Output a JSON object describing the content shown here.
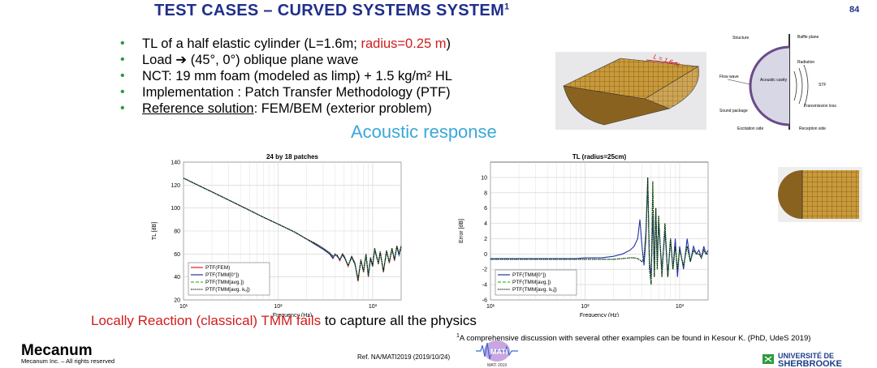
{
  "slide": {
    "title": "TEST CASES – CURVED SYSTEMS SYSTEM",
    "title_sup": "1",
    "page_number": "84",
    "bullets": [
      {
        "pre": "TL of a half elastic cylinder (L=1.6m; ",
        "red": "radius=0.25 m",
        "post": ")"
      },
      {
        "pre": "Load ➔ (45°, 0°) oblique plane wave",
        "red": "",
        "post": ""
      },
      {
        "pre": "NCT: 19 mm foam (modeled as limp) + 1.5 kg/m² HL",
        "red": "",
        "post": ""
      },
      {
        "pre": "Implementation : Patch Transfer Methodology (PTF)",
        "red": "",
        "post": ""
      }
    ],
    "bullet5": {
      "underlined": "Reference solution",
      "rest": ": FEM/BEM (exterior problem)"
    },
    "section_heading": "Acoustic response",
    "bottom_line": {
      "red": "Locally Reaction (classical) TMM fails",
      "rest": " to capture all the physics"
    },
    "footnote_sup": "1",
    "footnote": "A comprehensive discussion with several other examples can be found in Kesour K. (PhD, UdeS 2019)",
    "reference": "Ref. NA/MATI2019  (2019/10/24)",
    "logo_left": "Mecanum",
    "logo_left_sub": "Mecanum Inc. – All rights reserved",
    "logo_right_line1": "UNIVERSITÉ DE",
    "logo_right_line2": "SHERBROOKE",
    "logo_center": "MATI",
    "logo_center_sub": "MATI 2019",
    "model_label": "L = 1.6 m",
    "diagram_labels": [
      "Structure",
      "Baffle plane",
      "Radiation",
      "Flow wave",
      "Acoustic cavity",
      "STF",
      "Sound package",
      "Transmission loss",
      "Excitation side",
      "Reception side"
    ]
  },
  "colors": {
    "title": "#1f2f8a",
    "bullet": "#2e9a3c",
    "accent_red": "#d01c1c",
    "heading": "#3aa8d8"
  },
  "chart_data": [
    {
      "type": "line",
      "title": "24 by 18 patches",
      "xlabel": "Frequency (Hz)",
      "ylabel": "TL [dB]",
      "xscale": "log",
      "xlim": [
        10,
        2000
      ],
      "ylim": [
        20,
        140
      ],
      "xticks": [
        10,
        100,
        1000
      ],
      "xtick_labels": [
        "10¹",
        "10²",
        "10³"
      ],
      "yticks": [
        20,
        40,
        60,
        80,
        100,
        120,
        140
      ],
      "grid": true,
      "legend_position": "bottom-left",
      "series": [
        {
          "name": "PTF(FEM)",
          "color": "#e02020",
          "dash": "solid",
          "x": [
            10,
            15,
            20,
            30,
            50,
            70,
            100,
            150,
            200,
            250,
            300,
            350,
            380,
            400,
            420,
            450,
            480,
            500,
            550,
            600,
            650,
            700,
            750,
            800,
            850,
            900,
            950,
            1000,
            1050,
            1100,
            1150,
            1200,
            1300,
            1400,
            1500,
            1600,
            1700,
            1800,
            1900,
            2000
          ],
          "y": [
            126,
            119,
            114,
            107,
            98,
            92,
            86,
            79,
            73,
            69,
            65,
            61,
            57,
            59,
            59,
            54,
            60,
            58,
            49,
            58,
            52,
            36,
            55,
            44,
            60,
            40,
            57,
            50,
            65,
            58,
            51,
            62,
            44,
            63,
            52,
            65,
            54,
            67,
            60,
            67
          ]
        },
        {
          "name": "PTF(TMM[0°])",
          "color": "#2233aa",
          "dash": "solid",
          "x": [
            10,
            15,
            20,
            30,
            50,
            70,
            100,
            150,
            200,
            250,
            300,
            350,
            380,
            400,
            420,
            450,
            480,
            500,
            550,
            600,
            650,
            700,
            750,
            800,
            850,
            900,
            950,
            1000,
            1050,
            1100,
            1150,
            1200,
            1300,
            1400,
            1500,
            1600,
            1700,
            1800,
            1900,
            2000
          ],
          "y": [
            126,
            119,
            114,
            107,
            98,
            92,
            86,
            79,
            73,
            68,
            64,
            60,
            56,
            60,
            58,
            55,
            59,
            57,
            50,
            57,
            51,
            38,
            54,
            45,
            59,
            41,
            56,
            49,
            64,
            57,
            52,
            61,
            45,
            62,
            53,
            64,
            55,
            66,
            59,
            66
          ]
        },
        {
          "name": "PTF(TMM[avg.])",
          "color": "#44bb33",
          "dash": "dashed",
          "x": [
            10,
            15,
            20,
            30,
            50,
            70,
            100,
            150,
            200,
            250,
            300,
            350,
            380,
            400,
            420,
            450,
            480,
            500,
            550,
            600,
            650,
            700,
            750,
            800,
            850,
            900,
            950,
            1000,
            1050,
            1100,
            1150,
            1200,
            1300,
            1400,
            1500,
            1600,
            1700,
            1800,
            1900,
            2000
          ],
          "y": [
            126,
            119,
            114,
            107,
            98,
            92,
            86,
            79,
            73,
            69,
            65,
            61,
            58,
            59,
            59,
            55,
            60,
            58,
            50,
            58,
            52,
            37,
            55,
            45,
            60,
            41,
            57,
            50,
            65,
            58,
            52,
            62,
            45,
            63,
            53,
            65,
            55,
            67,
            60,
            67
          ]
        },
        {
          "name": "PTF(TMM[avg. kᵤ])",
          "color": "#000000",
          "dash": "dotted",
          "x": [
            10,
            15,
            20,
            30,
            50,
            70,
            100,
            150,
            200,
            250,
            300,
            350,
            380,
            400,
            420,
            450,
            480,
            500,
            550,
            600,
            650,
            700,
            750,
            800,
            850,
            900,
            950,
            1000,
            1050,
            1100,
            1150,
            1200,
            1300,
            1400,
            1500,
            1600,
            1700,
            1800,
            1900,
            2000
          ],
          "y": [
            126,
            119,
            114,
            107,
            98,
            92,
            86,
            79,
            73,
            69,
            65,
            61,
            58,
            59,
            59,
            55,
            60,
            58,
            50,
            58,
            52,
            37,
            55,
            45,
            60,
            41,
            57,
            50,
            65,
            58,
            52,
            62,
            45,
            63,
            53,
            65,
            55,
            67,
            60,
            67
          ]
        }
      ]
    },
    {
      "type": "line",
      "title": "TL (radius=25cm)",
      "xlabel": "Frequency (Hz)",
      "ylabel": "Error [dB]",
      "xscale": "log",
      "xlim": [
        10,
        2000
      ],
      "ylim": [
        -6,
        12
      ],
      "xticks": [
        10,
        100,
        1000
      ],
      "xtick_labels": [
        "10¹",
        "10²",
        "10³"
      ],
      "yticks": [
        -6,
        -4,
        -2,
        0,
        2,
        4,
        6,
        8,
        10
      ],
      "grid": true,
      "legend_position": "bottom-left",
      "series": [
        {
          "name": "PTF(TMM[0°])",
          "color": "#2233aa",
          "dash": "solid",
          "x": [
            10,
            20,
            50,
            80,
            100,
            150,
            200,
            250,
            300,
            330,
            360,
            380,
            400,
            420,
            440,
            460,
            480,
            500,
            520,
            540,
            560,
            580,
            600,
            650,
            700,
            750,
            800,
            850,
            900,
            950,
            1000,
            1100,
            1200,
            1300,
            1400,
            1500,
            1600,
            1700,
            1800,
            1900,
            2000
          ],
          "y": [
            -0.6,
            -0.6,
            -0.6,
            -0.6,
            -0.5,
            -0.5,
            -0.3,
            0,
            0.5,
            1,
            2,
            4.5,
            1,
            -1.5,
            2,
            9.5,
            -1,
            -3,
            5,
            -2,
            6,
            -1,
            4,
            -2,
            3,
            -3,
            2,
            -2,
            2,
            -3,
            1,
            -2,
            2,
            -1,
            1,
            0,
            0.5,
            -0.5,
            1,
            0,
            0.5
          ]
        },
        {
          "name": "PTF(TMM[avg.])",
          "color": "#44bb33",
          "dash": "dashed",
          "x": [
            10,
            20,
            50,
            80,
            100,
            150,
            200,
            250,
            300,
            330,
            360,
            380,
            400,
            420,
            440,
            460,
            480,
            500,
            520,
            540,
            560,
            580,
            600,
            650,
            700,
            750,
            800,
            850,
            900,
            950,
            1000,
            1100,
            1200,
            1300,
            1400,
            1500,
            1600,
            1700,
            1800,
            1900,
            2000
          ],
          "y": [
            -0.7,
            -0.7,
            -0.7,
            -0.7,
            -0.7,
            -0.7,
            -0.7,
            -0.6,
            -0.5,
            -0.5,
            -0.6,
            -0.8,
            -1,
            -0.5,
            3,
            10,
            -2,
            -4,
            9.5,
            -3,
            6,
            -2,
            5,
            -3,
            4,
            -3,
            2,
            -2,
            1,
            -2,
            0.5,
            -1.5,
            1,
            -1,
            0.5,
            0,
            0,
            -0.5,
            0.5,
            0,
            0
          ]
        },
        {
          "name": "PTF(TMM[avg. kᵤ])",
          "color": "#000000",
          "dash": "dotted",
          "x": [
            10,
            20,
            50,
            80,
            100,
            150,
            200,
            250,
            300,
            330,
            360,
            380,
            400,
            420,
            440,
            460,
            480,
            500,
            520,
            540,
            560,
            580,
            600,
            650,
            700,
            750,
            800,
            850,
            900,
            950,
            1000,
            1100,
            1200,
            1300,
            1400,
            1500,
            1600,
            1700,
            1800,
            1900,
            2000
          ],
          "y": [
            -0.7,
            -0.7,
            -0.7,
            -0.7,
            -0.7,
            -0.7,
            -0.7,
            -0.6,
            -0.5,
            -0.5,
            -0.6,
            -0.8,
            -1,
            -0.5,
            3,
            10,
            -2,
            -4,
            9.5,
            -3,
            6,
            -2,
            5,
            -3,
            4,
            -3,
            2,
            -2,
            1,
            -2,
            0.5,
            -1.5,
            1,
            -1,
            0.5,
            0,
            0,
            -0.5,
            0.5,
            0,
            0
          ]
        }
      ]
    }
  ]
}
